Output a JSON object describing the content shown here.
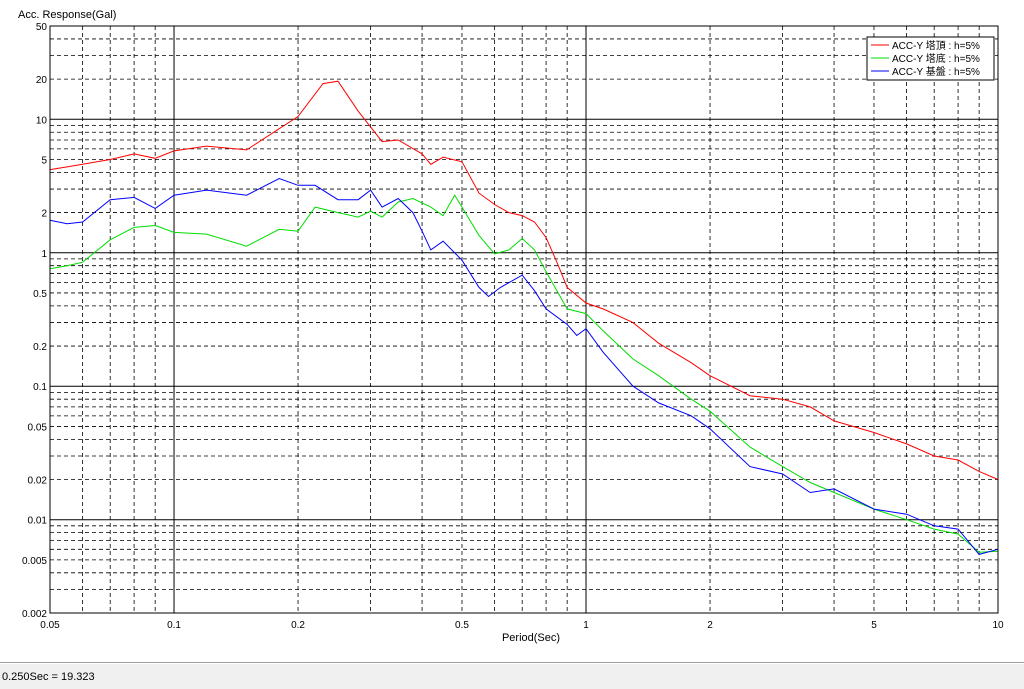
{
  "status": {
    "text": "0.250Sec = 19.323"
  },
  "chart_data": {
    "type": "line",
    "title": "",
    "ylabel": "Acc. Response(Gal)",
    "xlabel": "Period(Sec)",
    "xscale": "log",
    "yscale": "log",
    "xlim": [
      0.05,
      10
    ],
    "ylim": [
      0.002,
      50
    ],
    "grid": true,
    "legend_position": "top-right",
    "x_ticks": [
      {
        "value": 0.05,
        "label": "0.05"
      },
      {
        "value": 0.1,
        "label": "0.1"
      },
      {
        "value": 0.2,
        "label": "0.2"
      },
      {
        "value": 0.5,
        "label": "0.5"
      },
      {
        "value": 1,
        "label": "1"
      },
      {
        "value": 2,
        "label": "2"
      },
      {
        "value": 5,
        "label": "5"
      },
      {
        "value": 10,
        "label": "10"
      }
    ],
    "y_ticks": [
      {
        "value": 0.002,
        "label": "0.002"
      },
      {
        "value": 0.005,
        "label": "0.005"
      },
      {
        "value": 0.01,
        "label": "0.01"
      },
      {
        "value": 0.02,
        "label": "0.02"
      },
      {
        "value": 0.05,
        "label": "0.05"
      },
      {
        "value": 0.1,
        "label": "0.1"
      },
      {
        "value": 0.2,
        "label": "0.2"
      },
      {
        "value": 0.5,
        "label": "0.5"
      },
      {
        "value": 1,
        "label": "1"
      },
      {
        "value": 2,
        "label": "2"
      },
      {
        "value": 5,
        "label": "5"
      },
      {
        "value": 10,
        "label": "10"
      },
      {
        "value": 20,
        "label": "20"
      },
      {
        "value": 50,
        "label": "50"
      }
    ],
    "series": [
      {
        "name": "ACC-Y 塔頂 : h=5%",
        "color": "#ff0000",
        "points": [
          [
            0.05,
            4.2
          ],
          [
            0.055,
            4.4
          ],
          [
            0.06,
            4.6
          ],
          [
            0.07,
            5.0
          ],
          [
            0.08,
            5.5
          ],
          [
            0.09,
            5.1
          ],
          [
            0.1,
            5.8
          ],
          [
            0.12,
            6.3
          ],
          [
            0.15,
            5.9
          ],
          [
            0.18,
            8.5
          ],
          [
            0.2,
            10.5
          ],
          [
            0.23,
            18.5
          ],
          [
            0.25,
            19.3
          ],
          [
            0.28,
            11.5
          ],
          [
            0.32,
            6.8
          ],
          [
            0.35,
            7.0
          ],
          [
            0.4,
            5.5
          ],
          [
            0.42,
            4.6
          ],
          [
            0.45,
            5.2
          ],
          [
            0.5,
            4.8
          ],
          [
            0.55,
            2.8
          ],
          [
            0.6,
            2.3
          ],
          [
            0.65,
            2.0
          ],
          [
            0.7,
            1.9
          ],
          [
            0.75,
            1.7
          ],
          [
            0.8,
            1.3
          ],
          [
            0.85,
            0.85
          ],
          [
            0.9,
            0.55
          ],
          [
            1.0,
            0.42
          ],
          [
            1.1,
            0.38
          ],
          [
            1.3,
            0.3
          ],
          [
            1.5,
            0.21
          ],
          [
            1.8,
            0.15
          ],
          [
            2.0,
            0.12
          ],
          [
            2.5,
            0.085
          ],
          [
            3.0,
            0.08
          ],
          [
            3.5,
            0.07
          ],
          [
            4.0,
            0.055
          ],
          [
            5.0,
            0.045
          ],
          [
            6.0,
            0.037
          ],
          [
            7.0,
            0.03
          ],
          [
            8.0,
            0.028
          ],
          [
            9.0,
            0.023
          ],
          [
            10.0,
            0.02
          ]
        ]
      },
      {
        "name": "ACC-Y 塔底 : h=5%",
        "color": "#00dd00",
        "points": [
          [
            0.05,
            0.76
          ],
          [
            0.055,
            0.8
          ],
          [
            0.06,
            0.85
          ],
          [
            0.07,
            1.25
          ],
          [
            0.08,
            1.55
          ],
          [
            0.09,
            1.6
          ],
          [
            0.1,
            1.42
          ],
          [
            0.12,
            1.38
          ],
          [
            0.15,
            1.12
          ],
          [
            0.18,
            1.5
          ],
          [
            0.2,
            1.45
          ],
          [
            0.22,
            2.2
          ],
          [
            0.25,
            2.0
          ],
          [
            0.28,
            1.85
          ],
          [
            0.3,
            2.05
          ],
          [
            0.32,
            1.85
          ],
          [
            0.35,
            2.4
          ],
          [
            0.38,
            2.55
          ],
          [
            0.42,
            2.2
          ],
          [
            0.45,
            1.9
          ],
          [
            0.48,
            2.7
          ],
          [
            0.5,
            2.2
          ],
          [
            0.55,
            1.35
          ],
          [
            0.6,
            0.98
          ],
          [
            0.65,
            1.05
          ],
          [
            0.7,
            1.28
          ],
          [
            0.75,
            1.05
          ],
          [
            0.8,
            0.72
          ],
          [
            0.9,
            0.38
          ],
          [
            1.0,
            0.35
          ],
          [
            1.1,
            0.26
          ],
          [
            1.3,
            0.16
          ],
          [
            1.5,
            0.12
          ],
          [
            1.8,
            0.08
          ],
          [
            2.0,
            0.065
          ],
          [
            2.5,
            0.035
          ],
          [
            3.0,
            0.025
          ],
          [
            3.5,
            0.019
          ],
          [
            4.0,
            0.016
          ],
          [
            5.0,
            0.012
          ],
          [
            6.0,
            0.01
          ],
          [
            7.0,
            0.0085
          ],
          [
            8.0,
            0.0078
          ],
          [
            9.0,
            0.0057
          ],
          [
            10.0,
            0.0058
          ]
        ]
      },
      {
        "name": "ACC-Y 基盤 : h=5%",
        "color": "#0000ff",
        "points": [
          [
            0.05,
            1.75
          ],
          [
            0.055,
            1.65
          ],
          [
            0.06,
            1.7
          ],
          [
            0.07,
            2.5
          ],
          [
            0.08,
            2.6
          ],
          [
            0.09,
            2.15
          ],
          [
            0.1,
            2.7
          ],
          [
            0.12,
            2.95
          ],
          [
            0.15,
            2.7
          ],
          [
            0.18,
            3.6
          ],
          [
            0.2,
            3.2
          ],
          [
            0.22,
            3.2
          ],
          [
            0.25,
            2.5
          ],
          [
            0.28,
            2.5
          ],
          [
            0.3,
            2.95
          ],
          [
            0.32,
            2.2
          ],
          [
            0.35,
            2.55
          ],
          [
            0.38,
            2.0
          ],
          [
            0.4,
            1.45
          ],
          [
            0.42,
            1.05
          ],
          [
            0.45,
            1.22
          ],
          [
            0.5,
            0.88
          ],
          [
            0.55,
            0.55
          ],
          [
            0.58,
            0.47
          ],
          [
            0.62,
            0.55
          ],
          [
            0.7,
            0.68
          ],
          [
            0.75,
            0.52
          ],
          [
            0.8,
            0.38
          ],
          [
            0.9,
            0.29
          ],
          [
            0.95,
            0.24
          ],
          [
            1.0,
            0.27
          ],
          [
            1.1,
            0.18
          ],
          [
            1.3,
            0.1
          ],
          [
            1.5,
            0.075
          ],
          [
            1.8,
            0.06
          ],
          [
            2.0,
            0.048
          ],
          [
            2.5,
            0.025
          ],
          [
            3.0,
            0.022
          ],
          [
            3.5,
            0.016
          ],
          [
            4.0,
            0.017
          ],
          [
            5.0,
            0.012
          ],
          [
            6.0,
            0.011
          ],
          [
            7.0,
            0.009
          ],
          [
            8.0,
            0.0085
          ],
          [
            9.0,
            0.0055
          ],
          [
            10.0,
            0.006
          ]
        ]
      }
    ]
  }
}
